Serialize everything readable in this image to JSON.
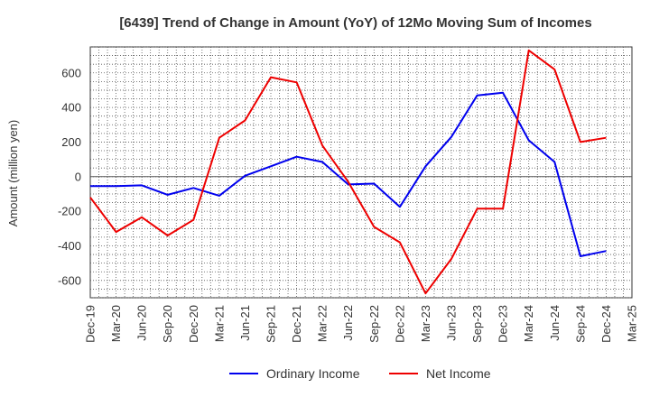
{
  "chart_data": {
    "type": "line",
    "title": "[6439]  Trend of Change in Amount (YoY) of 12Mo Moving Sum of Incomes",
    "xlabel": "",
    "ylabel": "Amount (million yen)",
    "ylim": [
      -700,
      750
    ],
    "yticks": [
      600,
      400,
      200,
      0,
      -200,
      -400,
      -600
    ],
    "grid": true,
    "legend_position": "bottom",
    "categories": [
      "Dec-19",
      "Mar-20",
      "Jun-20",
      "Sep-20",
      "Dec-20",
      "Mar-21",
      "Jun-21",
      "Sep-21",
      "Dec-21",
      "Mar-22",
      "Jun-22",
      "Sep-22",
      "Dec-22",
      "Mar-23",
      "Jun-23",
      "Sep-23",
      "Dec-23",
      "Mar-24",
      "Jun-24",
      "Sep-24",
      "Dec-24",
      "Mar-25"
    ],
    "series": [
      {
        "name": "Ordinary Income",
        "color": "#0000ee",
        "values": [
          -55,
          -55,
          -50,
          -105,
          -65,
          -110,
          5,
          60,
          115,
          85,
          -45,
          -40,
          -175,
          60,
          230,
          470,
          485,
          210,
          85,
          -460,
          -430,
          null
        ]
      },
      {
        "name": "Net Income",
        "color": "#ee0000",
        "values": [
          -120,
          -320,
          -235,
          -340,
          -250,
          225,
          325,
          575,
          545,
          180,
          -30,
          -290,
          -380,
          -675,
          -475,
          -185,
          -185,
          730,
          620,
          200,
          225,
          null
        ]
      }
    ]
  }
}
